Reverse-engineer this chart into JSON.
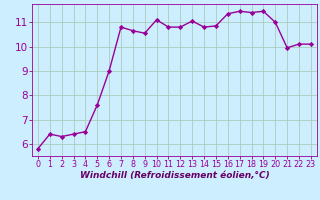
{
  "x": [
    0,
    1,
    2,
    3,
    4,
    5,
    6,
    7,
    8,
    9,
    10,
    11,
    12,
    13,
    14,
    15,
    16,
    17,
    18,
    19,
    20,
    21,
    22,
    23
  ],
  "y": [
    5.8,
    6.4,
    6.3,
    6.4,
    6.5,
    7.6,
    9.0,
    10.8,
    10.65,
    10.55,
    11.1,
    10.8,
    10.8,
    11.05,
    10.8,
    10.85,
    11.35,
    11.45,
    11.4,
    11.45,
    11.0,
    9.95,
    10.1,
    10.1
  ],
  "line_color": "#990099",
  "marker": "D",
  "marker_size": 2.2,
  "bg_color": "#cceeff",
  "grid_color": "#aaccbb",
  "xlabel": "Windchill (Refroidissement éolien,°C)",
  "xlabel_color": "#660066",
  "tick_color": "#990099",
  "ylim": [
    5.5,
    11.75
  ],
  "xlim": [
    -0.5,
    23.5
  ],
  "yticks": [
    6,
    7,
    8,
    9,
    10,
    11
  ],
  "xticks": [
    0,
    1,
    2,
    3,
    4,
    5,
    6,
    7,
    8,
    9,
    10,
    11,
    12,
    13,
    14,
    15,
    16,
    17,
    18,
    19,
    20,
    21,
    22,
    23
  ],
  "line_width": 1.0,
  "tick_fontsize": 5.8,
  "ylabel_fontsize": 7.5,
  "xlabel_fontsize": 6.5
}
